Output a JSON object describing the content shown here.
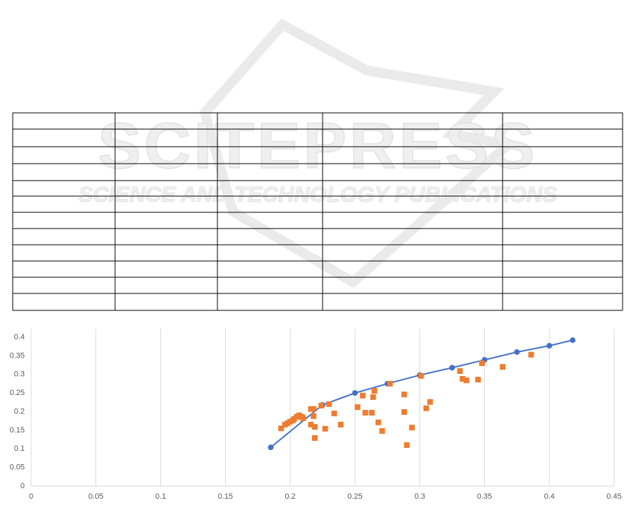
{
  "watermark": {
    "brand": "SCITEPRESS",
    "tagline": "SCIENCE AND TECHNOLOGY PUBLICATIONS"
  },
  "chart_data": {
    "type": "scatter",
    "xlim": [
      0,
      0.45
    ],
    "xticks": [
      0,
      0.05,
      0.1,
      0.15,
      0.2,
      0.25,
      0.3,
      0.35,
      0.4,
      0.45
    ],
    "ylim": [
      0,
      0.4
    ],
    "yticks": [
      0,
      0.05,
      0.1,
      0.15,
      0.2,
      0.25,
      0.3,
      0.35,
      0.4
    ],
    "grid": "x",
    "series": [
      {
        "color": "#4472c4",
        "mode": "line",
        "marker": "circle",
        "x": [
          0.185,
          0.225,
          0.25,
          0.275,
          0.3,
          0.325,
          0.35,
          0.375,
          0.4,
          0.418
        ],
        "values": [
          0.104,
          0.218,
          0.25,
          0.275,
          0.298,
          0.318,
          0.339,
          0.36,
          0.377,
          0.392
        ]
      },
      {
        "color": "#ed7d31",
        "mode": "markers",
        "marker": "square",
        "x": [
          0.193,
          0.196,
          0.198,
          0.2,
          0.202,
          0.203,
          0.205,
          0.207,
          0.209,
          0.21,
          0.216,
          0.218,
          0.218,
          0.216,
          0.219,
          0.219,
          0.224,
          0.23,
          0.227,
          0.234,
          0.239,
          0.252,
          0.256,
          0.258,
          0.263,
          0.264,
          0.265,
          0.268,
          0.271,
          0.277,
          0.288,
          0.288,
          0.29,
          0.294,
          0.301,
          0.305,
          0.308,
          0.331,
          0.333,
          0.336,
          0.345,
          0.348,
          0.364,
          0.386
        ],
        "values": [
          0.155,
          0.165,
          0.169,
          0.173,
          0.176,
          0.18,
          0.186,
          0.19,
          0.186,
          0.182,
          0.207,
          0.207,
          0.188,
          0.165,
          0.159,
          0.129,
          0.216,
          0.22,
          0.154,
          0.195,
          0.165,
          0.212,
          0.243,
          0.197,
          0.197,
          0.239,
          0.256,
          0.171,
          0.148,
          0.275,
          0.246,
          0.199,
          0.11,
          0.157,
          0.296,
          0.209,
          0.226,
          0.309,
          0.288,
          0.284,
          0.286,
          0.33,
          0.32,
          0.353
        ]
      }
    ]
  }
}
